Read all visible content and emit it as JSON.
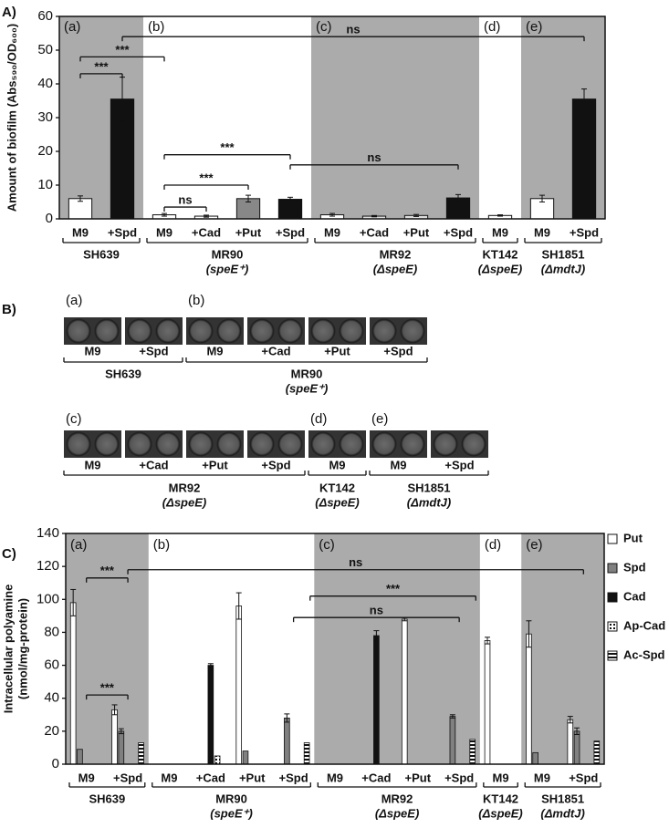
{
  "chart_data": [
    {
      "type": "bar",
      "label": "A)",
      "ylabel": "Amount of biofilm (Abs₅₉₀/OD₆₀₀)",
      "ylim": [
        0,
        60
      ],
      "yticks": [
        0,
        10,
        20,
        30,
        40,
        50,
        60
      ],
      "groups": [
        {
          "letter": "(a)",
          "categories": [
            "M9",
            "+Spd"
          ],
          "strain": "SH639",
          "shaded": true
        },
        {
          "letter": "(b)",
          "categories": [
            "M9",
            "+Cad",
            "+Put",
            "+Spd"
          ],
          "strain": "MR90",
          "genotype": "(speE⁺)",
          "shaded": false
        },
        {
          "letter": "(c)",
          "categories": [
            "M9",
            "+Cad",
            "+Put",
            "+Spd"
          ],
          "strain": "MR92",
          "genotype": "(ΔspeE)",
          "shaded": true
        },
        {
          "letter": "(d)",
          "categories": [
            "M9"
          ],
          "strain": "KT142",
          "genotype": "(ΔspeE)",
          "shaded": false
        },
        {
          "letter": "(e)",
          "categories": [
            "M9",
            "+Spd"
          ],
          "strain": "SH1851",
          "genotype": "(ΔmdtJ)",
          "shaded": true
        }
      ],
      "values": [
        6,
        35.5,
        1.2,
        0.8,
        6,
        5.8,
        1.2,
        0.8,
        1,
        6.2,
        1,
        6,
        35.5
      ],
      "errors": [
        0.8,
        6.5,
        0.4,
        0.3,
        1,
        0.6,
        0.4,
        0.2,
        0.3,
        1,
        0.2,
        1,
        3
      ],
      "colors": [
        "#ffffff",
        "#111111",
        "#ffffff",
        "#ffffff",
        "#888888",
        "#111111",
        "#ffffff",
        "#dddddd",
        "#dddddd",
        "#111111",
        "#ffffff",
        "#ffffff",
        "#111111"
      ],
      "annotations": [
        "***",
        "***",
        "ns",
        "ns",
        "***",
        "***",
        "ns"
      ]
    },
    {
      "type": "grouped_bar",
      "label": "C)",
      "ylabel": [
        "Intracellular polyamine",
        "(nmol/mg-protein)"
      ],
      "ylim": [
        0,
        140
      ],
      "yticks": [
        0,
        20,
        40,
        60,
        80,
        100,
        120,
        140
      ],
      "groups": [
        {
          "letter": "(a)",
          "categories": [
            "M9",
            "+Spd"
          ],
          "strain": "SH639",
          "shaded": true
        },
        {
          "letter": "(b)",
          "categories": [
            "M9",
            "+Cad",
            "+Put",
            "+Spd"
          ],
          "strain": "MR90",
          "genotype": "(speE⁺)",
          "shaded": false
        },
        {
          "letter": "(c)",
          "categories": [
            "M9",
            "+Cad",
            "+Put",
            "+Spd"
          ],
          "strain": "MR92",
          "genotype": "(ΔspeE)",
          "shaded": true
        },
        {
          "letter": "(d)",
          "categories": [
            "M9"
          ],
          "strain": "KT142",
          "genotype": "(ΔspeE)",
          "shaded": false
        },
        {
          "letter": "(e)",
          "categories": [
            "M9",
            "+Spd"
          ],
          "strain": "SH1851",
          "genotype": "(ΔmdtJ)",
          "shaded": true
        }
      ],
      "series": [
        {
          "name": "Put",
          "color": "#ffffff",
          "values": [
            98,
            33,
            0,
            0,
            96,
            0,
            0,
            0,
            88,
            0,
            75,
            79,
            27
          ],
          "errors": [
            8,
            3,
            null,
            null,
            8,
            null,
            null,
            null,
            1,
            null,
            2,
            8,
            2
          ]
        },
        {
          "name": "Spd",
          "color": "#808080",
          "values": [
            9,
            20,
            0,
            0,
            8,
            28,
            0,
            0,
            0,
            29,
            0,
            7,
            20
          ],
          "errors": [
            null,
            1.5,
            null,
            null,
            null,
            2.5,
            null,
            null,
            null,
            1,
            null,
            null,
            2
          ]
        },
        {
          "name": "Cad",
          "color": "#111111",
          "values": [
            0,
            0,
            0,
            60,
            0,
            0,
            0,
            78,
            0,
            0,
            0,
            0,
            0
          ],
          "errors": [
            null,
            null,
            null,
            1,
            null,
            null,
            null,
            3,
            null,
            null,
            null,
            null,
            null
          ]
        },
        {
          "name": "Ap-Cad",
          "color": "#ffffff",
          "pattern": "dots",
          "values": [
            0,
            0,
            0,
            5,
            0,
            0,
            0,
            0,
            0,
            0,
            0,
            0,
            0
          ],
          "errors": [
            null,
            null,
            null,
            null,
            null,
            null,
            null,
            null,
            null,
            null,
            null,
            null,
            null
          ]
        },
        {
          "name": "Ac-Spd",
          "color": "#ffffff",
          "pattern": "stripes",
          "values": [
            0,
            13,
            0,
            0,
            0,
            13,
            0,
            0,
            0,
            15,
            0,
            0,
            14
          ],
          "errors": [
            null,
            null,
            null,
            null,
            null,
            null,
            null,
            null,
            null,
            null,
            null,
            null,
            null
          ]
        }
      ],
      "annotations": [
        "***",
        "ns",
        "***",
        "ns",
        "***"
      ]
    }
  ],
  "wells": {
    "label": "B)",
    "rows": [
      [
        {
          "letter": "(a)",
          "conditions": [
            "M9",
            "+Spd"
          ],
          "strain": "SH639"
        },
        {
          "letter": "(b)",
          "conditions": [
            "M9",
            "+Cad",
            "+Put",
            "+Spd"
          ],
          "strain": "MR90",
          "genotype": "(speE⁺)"
        }
      ],
      [
        {
          "letter": "(c)",
          "conditions": [
            "M9",
            "+Cad",
            "+Put",
            "+Spd"
          ],
          "strain": "MR92",
          "genotype": "(ΔspeE)"
        },
        {
          "letter": "(d)",
          "conditions": [
            "M9"
          ],
          "strain": "KT142",
          "genotype": "(ΔspeE)"
        },
        {
          "letter": "(e)",
          "conditions": [
            "M9",
            "+Spd"
          ],
          "strain": "SH1851",
          "genotype": "(ΔmdtJ)"
        }
      ]
    ]
  }
}
